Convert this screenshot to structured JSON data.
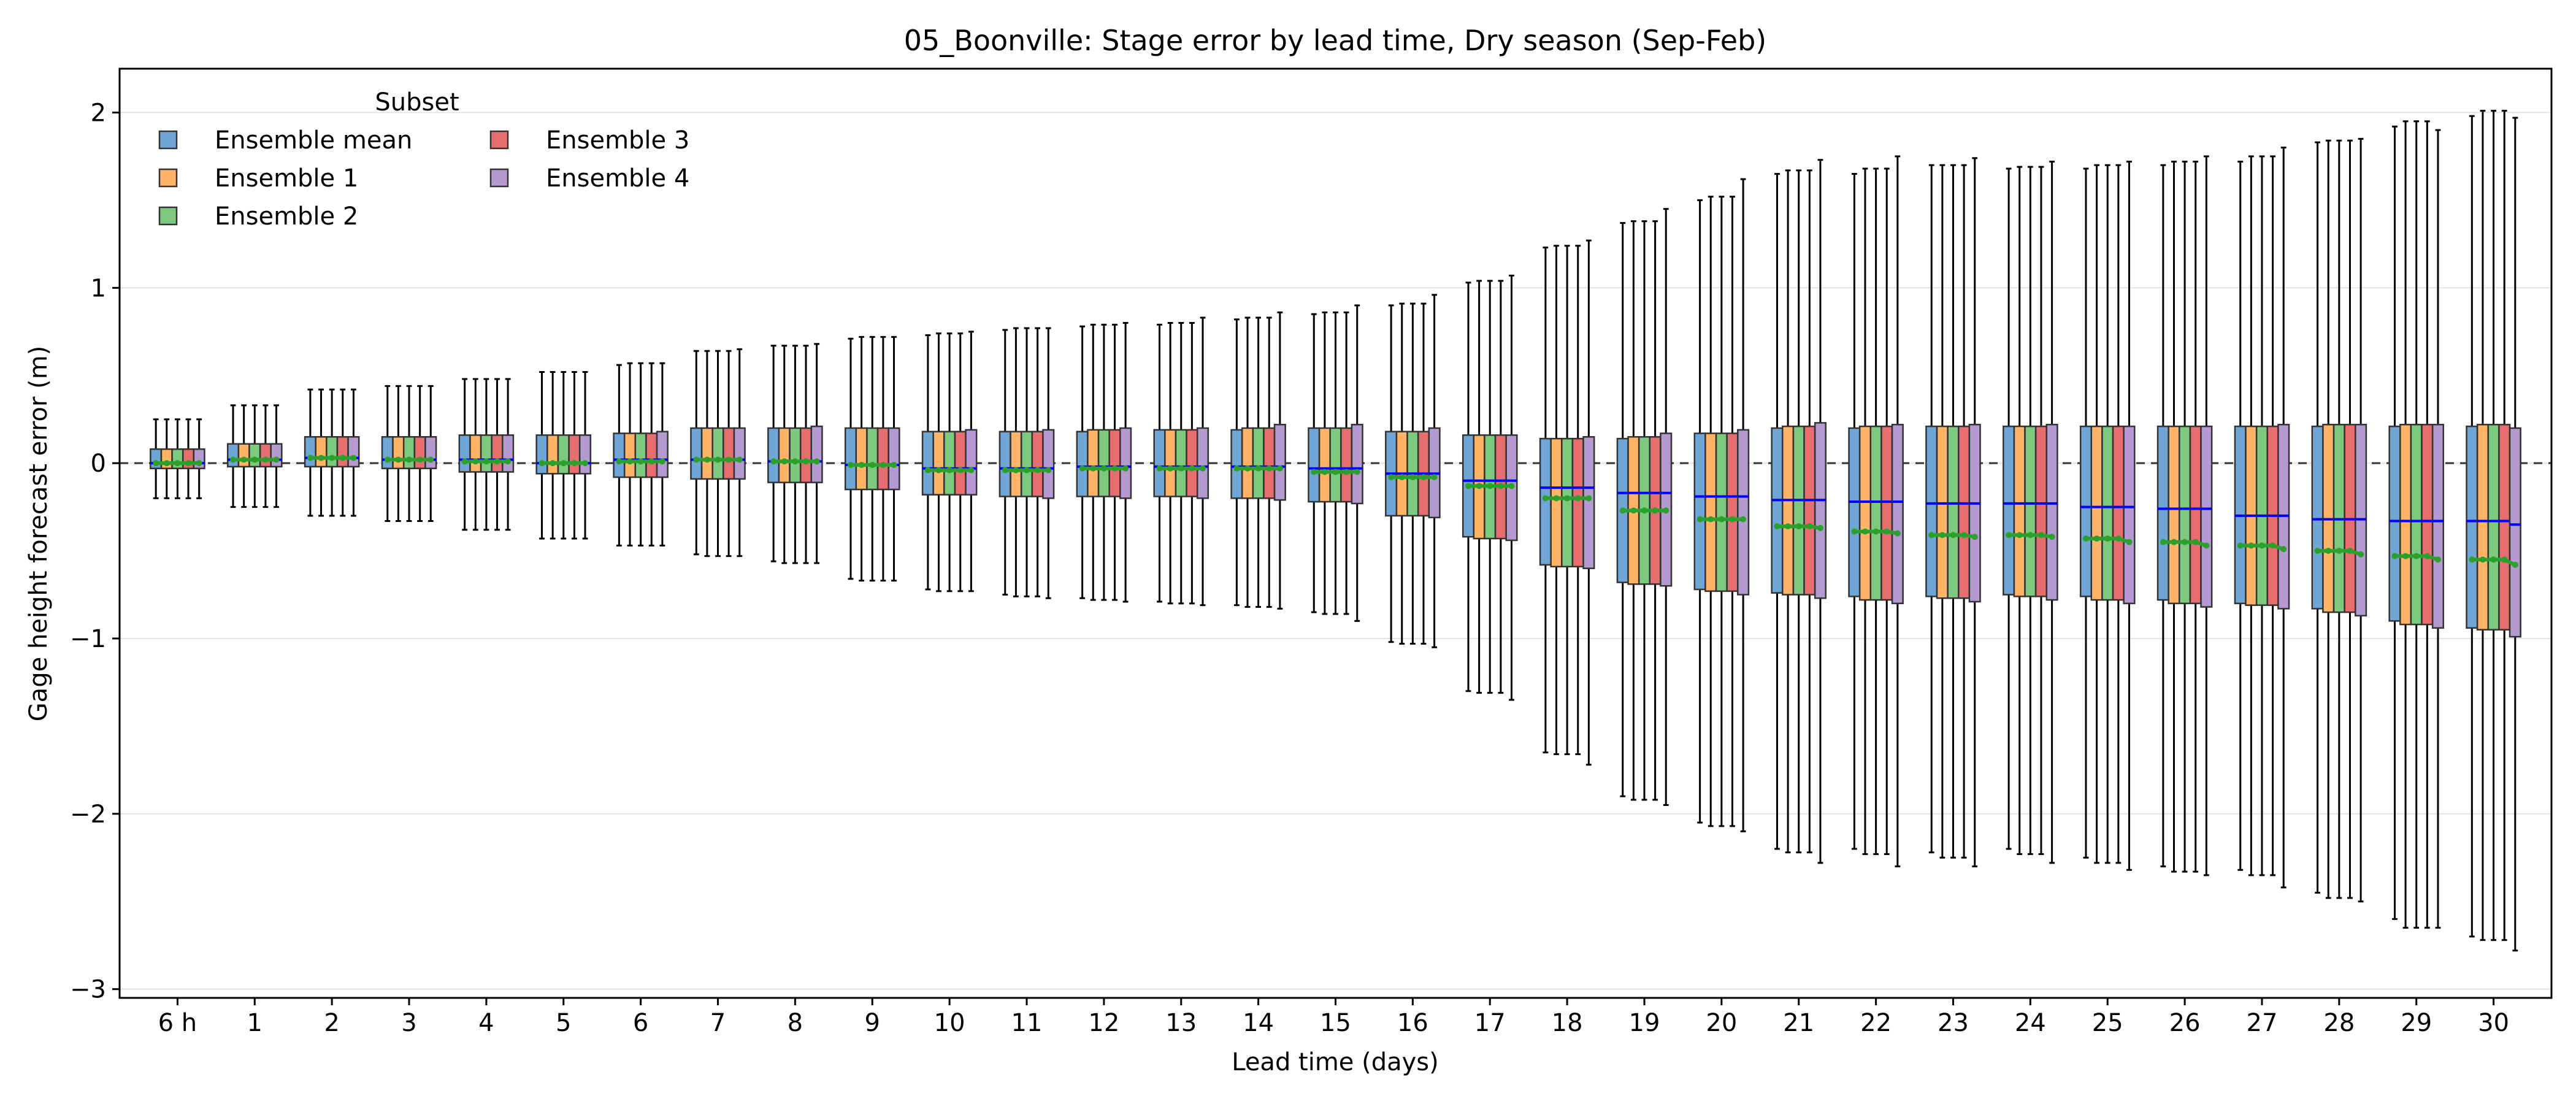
{
  "chart_data": {
    "type": "box",
    "title": "05_Boonville: Stage error by lead time, Dry season (Sep-Feb)",
    "xlabel": "Lead time (days)",
    "ylabel": "Gage height forecast error (m)",
    "ylim": [
      -3.05,
      2.25
    ],
    "yticks": [
      -3,
      -2,
      -1,
      0,
      1,
      2
    ],
    "ytick_labels": [
      "−3",
      "−2",
      "−1",
      "0",
      "1",
      "2"
    ],
    "grid": "horizontal",
    "reference_line": 0,
    "categories": [
      "6 h",
      "1",
      "2",
      "3",
      "4",
      "5",
      "6",
      "7",
      "8",
      "9",
      "10",
      "11",
      "12",
      "13",
      "14",
      "15",
      "16",
      "17",
      "18",
      "19",
      "20",
      "21",
      "22",
      "23",
      "24",
      "25",
      "26",
      "27",
      "28",
      "29",
      "30"
    ],
    "legend": {
      "title": "Subset",
      "placement": "top-left",
      "ncol": 2
    },
    "median_color": "#0000ff",
    "mean_color": "#2ca02c",
    "series": [
      {
        "name": "Ensemble mean",
        "color": "#6fa6d6",
        "q1": [
          -0.03,
          -0.02,
          -0.02,
          -0.03,
          -0.05,
          -0.06,
          -0.08,
          -0.09,
          -0.11,
          -0.15,
          -0.18,
          -0.19,
          -0.19,
          -0.19,
          -0.2,
          -0.22,
          -0.3,
          -0.42,
          -0.58,
          -0.68,
          -0.72,
          -0.74,
          -0.76,
          -0.76,
          -0.75,
          -0.76,
          -0.78,
          -0.8,
          -0.83,
          -0.9,
          -0.94
        ],
        "median": [
          0.0,
          0.02,
          0.03,
          0.02,
          0.02,
          0.0,
          0.02,
          0.02,
          0.01,
          -0.01,
          -0.03,
          -0.03,
          -0.02,
          -0.02,
          -0.02,
          -0.03,
          -0.06,
          -0.1,
          -0.14,
          -0.17,
          -0.19,
          -0.21,
          -0.22,
          -0.23,
          -0.23,
          -0.25,
          -0.26,
          -0.3,
          -0.32,
          -0.33,
          -0.33
        ],
        "q3": [
          0.08,
          0.11,
          0.15,
          0.15,
          0.16,
          0.16,
          0.17,
          0.2,
          0.2,
          0.2,
          0.18,
          0.18,
          0.18,
          0.19,
          0.19,
          0.2,
          0.18,
          0.16,
          0.14,
          0.14,
          0.17,
          0.2,
          0.2,
          0.21,
          0.21,
          0.21,
          0.21,
          0.21,
          0.21,
          0.21,
          0.21
        ],
        "lo": [
          -0.2,
          -0.25,
          -0.3,
          -0.33,
          -0.38,
          -0.43,
          -0.47,
          -0.52,
          -0.56,
          -0.66,
          -0.72,
          -0.75,
          -0.77,
          -0.79,
          -0.81,
          -0.85,
          -1.02,
          -1.3,
          -1.65,
          -1.9,
          -2.05,
          -2.2,
          -2.2,
          -2.22,
          -2.2,
          -2.25,
          -2.3,
          -2.32,
          -2.45,
          -2.6,
          -2.7
        ],
        "hi": [
          0.25,
          0.33,
          0.42,
          0.44,
          0.48,
          0.52,
          0.56,
          0.64,
          0.67,
          0.71,
          0.73,
          0.76,
          0.78,
          0.79,
          0.82,
          0.85,
          0.9,
          1.03,
          1.23,
          1.37,
          1.5,
          1.65,
          1.65,
          1.7,
          1.68,
          1.68,
          1.7,
          1.72,
          1.83,
          1.92,
          1.98
        ],
        "mean": [
          0.0,
          0.02,
          0.03,
          0.02,
          0.01,
          0.0,
          0.01,
          0.02,
          0.01,
          -0.01,
          -0.04,
          -0.04,
          -0.03,
          -0.03,
          -0.03,
          -0.05,
          -0.08,
          -0.13,
          -0.2,
          -0.27,
          -0.32,
          -0.36,
          -0.39,
          -0.41,
          -0.41,
          -0.43,
          -0.45,
          -0.47,
          -0.5,
          -0.53,
          -0.55
        ]
      },
      {
        "name": "Ensemble 1",
        "color": "#ffb366",
        "q1": [
          -0.03,
          -0.02,
          -0.02,
          -0.03,
          -0.05,
          -0.06,
          -0.08,
          -0.09,
          -0.11,
          -0.15,
          -0.18,
          -0.19,
          -0.19,
          -0.19,
          -0.2,
          -0.22,
          -0.3,
          -0.43,
          -0.59,
          -0.69,
          -0.73,
          -0.75,
          -0.78,
          -0.77,
          -0.76,
          -0.78,
          -0.8,
          -0.81,
          -0.85,
          -0.92,
          -0.95
        ],
        "median": [
          0.0,
          0.02,
          0.03,
          0.02,
          0.02,
          0.0,
          0.02,
          0.02,
          0.01,
          -0.01,
          -0.03,
          -0.03,
          -0.02,
          -0.02,
          -0.02,
          -0.03,
          -0.06,
          -0.1,
          -0.14,
          -0.17,
          -0.19,
          -0.21,
          -0.22,
          -0.23,
          -0.23,
          -0.25,
          -0.26,
          -0.3,
          -0.32,
          -0.33,
          -0.33
        ],
        "q3": [
          0.08,
          0.11,
          0.15,
          0.15,
          0.16,
          0.16,
          0.17,
          0.2,
          0.2,
          0.2,
          0.18,
          0.18,
          0.19,
          0.19,
          0.2,
          0.2,
          0.18,
          0.16,
          0.14,
          0.15,
          0.17,
          0.21,
          0.21,
          0.21,
          0.21,
          0.21,
          0.21,
          0.21,
          0.22,
          0.22,
          0.22
        ],
        "lo": [
          -0.2,
          -0.25,
          -0.3,
          -0.33,
          -0.38,
          -0.43,
          -0.47,
          -0.53,
          -0.57,
          -0.67,
          -0.73,
          -0.76,
          -0.78,
          -0.8,
          -0.82,
          -0.86,
          -1.03,
          -1.31,
          -1.66,
          -1.92,
          -2.07,
          -2.22,
          -2.23,
          -2.25,
          -2.23,
          -2.28,
          -2.33,
          -2.35,
          -2.48,
          -2.65,
          -2.72
        ],
        "hi": [
          0.25,
          0.33,
          0.42,
          0.44,
          0.48,
          0.52,
          0.57,
          0.64,
          0.67,
          0.72,
          0.74,
          0.77,
          0.79,
          0.8,
          0.83,
          0.86,
          0.91,
          1.04,
          1.24,
          1.38,
          1.52,
          1.67,
          1.68,
          1.7,
          1.69,
          1.7,
          1.72,
          1.75,
          1.84,
          1.95,
          2.01
        ],
        "mean": [
          0.0,
          0.02,
          0.03,
          0.02,
          0.01,
          0.0,
          0.01,
          0.02,
          0.01,
          -0.01,
          -0.04,
          -0.04,
          -0.03,
          -0.03,
          -0.03,
          -0.05,
          -0.08,
          -0.13,
          -0.2,
          -0.27,
          -0.32,
          -0.36,
          -0.39,
          -0.41,
          -0.41,
          -0.43,
          -0.45,
          -0.47,
          -0.5,
          -0.53,
          -0.55
        ]
      },
      {
        "name": "Ensemble 2",
        "color": "#7dc97d",
        "q1": [
          -0.03,
          -0.02,
          -0.02,
          -0.03,
          -0.05,
          -0.06,
          -0.08,
          -0.09,
          -0.11,
          -0.15,
          -0.18,
          -0.19,
          -0.19,
          -0.19,
          -0.2,
          -0.22,
          -0.3,
          -0.43,
          -0.59,
          -0.69,
          -0.73,
          -0.75,
          -0.78,
          -0.77,
          -0.76,
          -0.78,
          -0.8,
          -0.81,
          -0.85,
          -0.92,
          -0.95
        ],
        "median": [
          0.0,
          0.02,
          0.03,
          0.02,
          0.02,
          0.0,
          0.02,
          0.02,
          0.01,
          -0.01,
          -0.03,
          -0.03,
          -0.02,
          -0.02,
          -0.02,
          -0.03,
          -0.06,
          -0.1,
          -0.14,
          -0.17,
          -0.19,
          -0.21,
          -0.22,
          -0.23,
          -0.23,
          -0.25,
          -0.26,
          -0.3,
          -0.32,
          -0.33,
          -0.33
        ],
        "q3": [
          0.08,
          0.11,
          0.15,
          0.15,
          0.16,
          0.16,
          0.17,
          0.2,
          0.2,
          0.2,
          0.18,
          0.18,
          0.19,
          0.19,
          0.2,
          0.2,
          0.18,
          0.16,
          0.14,
          0.15,
          0.17,
          0.21,
          0.21,
          0.21,
          0.21,
          0.21,
          0.21,
          0.21,
          0.22,
          0.22,
          0.22
        ],
        "lo": [
          -0.2,
          -0.25,
          -0.3,
          -0.33,
          -0.38,
          -0.43,
          -0.47,
          -0.53,
          -0.57,
          -0.67,
          -0.73,
          -0.76,
          -0.78,
          -0.8,
          -0.82,
          -0.86,
          -1.03,
          -1.31,
          -1.66,
          -1.92,
          -2.07,
          -2.22,
          -2.23,
          -2.25,
          -2.23,
          -2.28,
          -2.33,
          -2.35,
          -2.48,
          -2.65,
          -2.72
        ],
        "hi": [
          0.25,
          0.33,
          0.42,
          0.44,
          0.48,
          0.52,
          0.57,
          0.64,
          0.67,
          0.72,
          0.74,
          0.77,
          0.79,
          0.8,
          0.83,
          0.86,
          0.91,
          1.04,
          1.24,
          1.38,
          1.52,
          1.67,
          1.68,
          1.7,
          1.69,
          1.7,
          1.72,
          1.75,
          1.84,
          1.95,
          2.01
        ],
        "mean": [
          0.0,
          0.02,
          0.03,
          0.02,
          0.01,
          0.0,
          0.01,
          0.02,
          0.01,
          -0.01,
          -0.04,
          -0.04,
          -0.03,
          -0.03,
          -0.03,
          -0.05,
          -0.08,
          -0.13,
          -0.2,
          -0.27,
          -0.32,
          -0.36,
          -0.39,
          -0.41,
          -0.41,
          -0.43,
          -0.45,
          -0.47,
          -0.5,
          -0.53,
          -0.55
        ]
      },
      {
        "name": "Ensemble 3",
        "color": "#e66e6e",
        "q1": [
          -0.03,
          -0.02,
          -0.02,
          -0.03,
          -0.05,
          -0.06,
          -0.08,
          -0.09,
          -0.11,
          -0.15,
          -0.18,
          -0.19,
          -0.19,
          -0.19,
          -0.2,
          -0.22,
          -0.3,
          -0.43,
          -0.59,
          -0.69,
          -0.73,
          -0.75,
          -0.78,
          -0.77,
          -0.76,
          -0.78,
          -0.8,
          -0.81,
          -0.85,
          -0.92,
          -0.95
        ],
        "median": [
          0.0,
          0.02,
          0.03,
          0.02,
          0.02,
          0.0,
          0.02,
          0.02,
          0.01,
          -0.01,
          -0.03,
          -0.03,
          -0.02,
          -0.02,
          -0.02,
          -0.03,
          -0.06,
          -0.1,
          -0.14,
          -0.17,
          -0.19,
          -0.21,
          -0.22,
          -0.23,
          -0.23,
          -0.25,
          -0.26,
          -0.3,
          -0.32,
          -0.33,
          -0.33
        ],
        "q3": [
          0.08,
          0.11,
          0.15,
          0.15,
          0.16,
          0.16,
          0.17,
          0.2,
          0.2,
          0.2,
          0.18,
          0.18,
          0.19,
          0.19,
          0.2,
          0.2,
          0.18,
          0.16,
          0.14,
          0.15,
          0.17,
          0.21,
          0.21,
          0.21,
          0.21,
          0.21,
          0.21,
          0.21,
          0.22,
          0.22,
          0.22
        ],
        "lo": [
          -0.2,
          -0.25,
          -0.3,
          -0.33,
          -0.38,
          -0.43,
          -0.47,
          -0.53,
          -0.57,
          -0.67,
          -0.73,
          -0.76,
          -0.78,
          -0.8,
          -0.82,
          -0.86,
          -1.03,
          -1.31,
          -1.66,
          -1.92,
          -2.07,
          -2.22,
          -2.23,
          -2.25,
          -2.23,
          -2.28,
          -2.33,
          -2.35,
          -2.48,
          -2.65,
          -2.72
        ],
        "hi": [
          0.25,
          0.33,
          0.42,
          0.44,
          0.48,
          0.52,
          0.57,
          0.64,
          0.67,
          0.72,
          0.74,
          0.77,
          0.79,
          0.8,
          0.83,
          0.86,
          0.91,
          1.04,
          1.24,
          1.38,
          1.52,
          1.67,
          1.68,
          1.7,
          1.69,
          1.7,
          1.72,
          1.75,
          1.84,
          1.95,
          2.01
        ],
        "mean": [
          0.0,
          0.02,
          0.03,
          0.02,
          0.01,
          0.0,
          0.01,
          0.02,
          0.01,
          -0.01,
          -0.04,
          -0.04,
          -0.03,
          -0.03,
          -0.03,
          -0.05,
          -0.08,
          -0.13,
          -0.2,
          -0.27,
          -0.32,
          -0.36,
          -0.39,
          -0.41,
          -0.41,
          -0.43,
          -0.45,
          -0.47,
          -0.5,
          -0.53,
          -0.55
        ]
      },
      {
        "name": "Ensemble 4",
        "color": "#b49ad0",
        "q1": [
          -0.03,
          -0.02,
          -0.02,
          -0.03,
          -0.05,
          -0.06,
          -0.08,
          -0.09,
          -0.11,
          -0.15,
          -0.18,
          -0.2,
          -0.2,
          -0.2,
          -0.21,
          -0.23,
          -0.31,
          -0.44,
          -0.6,
          -0.7,
          -0.75,
          -0.77,
          -0.8,
          -0.79,
          -0.78,
          -0.8,
          -0.82,
          -0.83,
          -0.87,
          -0.94,
          -0.99
        ],
        "median": [
          0.0,
          0.02,
          0.03,
          0.02,
          0.02,
          0.0,
          0.02,
          0.02,
          0.01,
          -0.01,
          -0.03,
          -0.03,
          -0.02,
          -0.02,
          -0.02,
          -0.03,
          -0.06,
          -0.1,
          -0.14,
          -0.17,
          -0.19,
          -0.21,
          -0.22,
          -0.23,
          -0.23,
          -0.25,
          -0.26,
          -0.3,
          -0.32,
          -0.33,
          -0.35
        ],
        "q3": [
          0.08,
          0.11,
          0.15,
          0.15,
          0.16,
          0.16,
          0.18,
          0.2,
          0.21,
          0.2,
          0.19,
          0.19,
          0.2,
          0.2,
          0.22,
          0.22,
          0.2,
          0.16,
          0.15,
          0.17,
          0.19,
          0.23,
          0.22,
          0.22,
          0.22,
          0.21,
          0.21,
          0.22,
          0.22,
          0.22,
          0.2
        ],
        "lo": [
          -0.2,
          -0.25,
          -0.3,
          -0.33,
          -0.38,
          -0.43,
          -0.47,
          -0.53,
          -0.57,
          -0.67,
          -0.73,
          -0.77,
          -0.79,
          -0.81,
          -0.83,
          -0.9,
          -1.05,
          -1.35,
          -1.72,
          -1.95,
          -2.1,
          -2.28,
          -2.3,
          -2.3,
          -2.28,
          -2.32,
          -2.35,
          -2.42,
          -2.5,
          -2.65,
          -2.78
        ],
        "hi": [
          0.25,
          0.33,
          0.42,
          0.44,
          0.48,
          0.52,
          0.57,
          0.65,
          0.68,
          0.72,
          0.75,
          0.77,
          0.8,
          0.83,
          0.86,
          0.9,
          0.96,
          1.07,
          1.27,
          1.45,
          1.62,
          1.73,
          1.75,
          1.74,
          1.72,
          1.72,
          1.75,
          1.8,
          1.85,
          1.9,
          1.97
        ],
        "mean": [
          0.0,
          0.02,
          0.03,
          0.02,
          0.01,
          0.0,
          0.01,
          0.02,
          0.01,
          -0.01,
          -0.04,
          -0.04,
          -0.03,
          -0.03,
          -0.03,
          -0.05,
          -0.08,
          -0.13,
          -0.2,
          -0.27,
          -0.32,
          -0.37,
          -0.4,
          -0.42,
          -0.42,
          -0.45,
          -0.47,
          -0.49,
          -0.52,
          -0.55,
          -0.58
        ]
      }
    ]
  }
}
